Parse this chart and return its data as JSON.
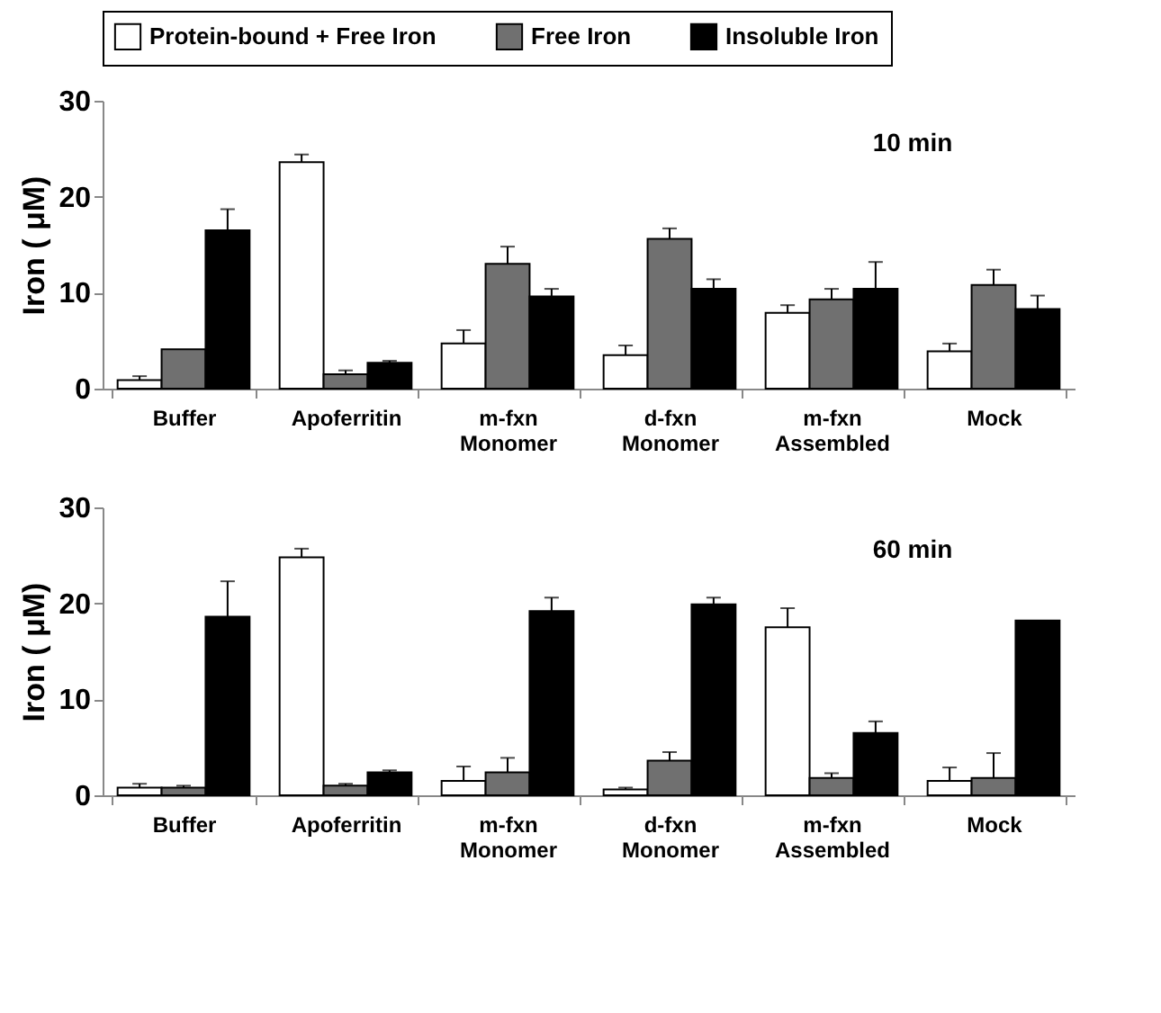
{
  "chart_data": [
    {
      "type": "bar",
      "ylabel": "Iron ( μM)",
      "categories": [
        "Buffer",
        "Apoferritin",
        "m-fxn Monomer",
        "d-fxn Monomer",
        "m-fxn Assembled",
        "Mock"
      ],
      "ylim": [
        0,
        30
      ],
      "yticks": [
        0,
        10,
        20,
        30
      ],
      "grid": false,
      "legend": "top",
      "annotations": [
        "10 min"
      ],
      "series": [
        {
          "name": "Protein-bound + Free Iron",
          "color": "#ffffff",
          "values": [
            0.9,
            23.6,
            4.7,
            3.5,
            7.9,
            3.9
          ],
          "errors": [
            [
              0.9,
              1.3
            ],
            [
              23.6,
              24.4
            ],
            [
              4.7,
              6.1
            ],
            [
              3.5,
              4.5
            ],
            [
              7.9,
              8.7
            ],
            [
              3.9,
              4.7
            ]
          ]
        },
        {
          "name": "Free Iron",
          "color": "#707070",
          "values": [
            4.1,
            1.5,
            13.0,
            15.6,
            9.3,
            10.8
          ],
          "errors": [
            null,
            [
              1.5,
              1.9
            ],
            [
              13.0,
              14.8
            ],
            [
              15.6,
              16.7
            ],
            [
              9.3,
              10.4
            ],
            [
              10.8,
              12.4
            ]
          ]
        },
        {
          "name": "Insoluble Iron",
          "color": "#000000",
          "values": [
            16.5,
            2.7,
            9.6,
            10.4,
            10.4,
            8.3
          ],
          "errors": [
            [
              16.5,
              18.7
            ],
            [
              2.7,
              2.9
            ],
            [
              9.6,
              10.4
            ],
            [
              10.4,
              11.4
            ],
            [
              10.4,
              13.2
            ],
            [
              8.3,
              9.7
            ]
          ]
        }
      ]
    },
    {
      "type": "bar",
      "ylabel": "Iron ( μM)",
      "categories": [
        "Buffer",
        "Apoferritin",
        "m-fxn Monomer",
        "d-fxn Monomer",
        "m-fxn Assembled",
        "Mock"
      ],
      "ylim": [
        0,
        30
      ],
      "yticks": [
        0,
        10,
        20,
        30
      ],
      "grid": false,
      "annotations": [
        "60 min"
      ],
      "series": [
        {
          "name": "Protein-bound + Free Iron",
          "color": "#ffffff",
          "values": [
            0.8,
            24.8,
            1.5,
            0.6,
            17.5,
            1.5
          ],
          "errors": [
            [
              0.8,
              1.2
            ],
            [
              24.8,
              25.7
            ],
            [
              1.5,
              3.0
            ],
            [
              0.6,
              0.8
            ],
            [
              17.5,
              19.5
            ],
            [
              1.5,
              2.9
            ]
          ]
        },
        {
          "name": "Free Iron",
          "color": "#707070",
          "values": [
            0.8,
            1.0,
            2.4,
            3.6,
            1.8,
            1.8
          ],
          "errors": [
            [
              0.8,
              1.0
            ],
            [
              1.0,
              1.2
            ],
            [
              2.4,
              3.9
            ],
            [
              3.6,
              4.5
            ],
            [
              1.8,
              2.3
            ],
            [
              1.8,
              4.4
            ]
          ]
        },
        {
          "name": "Insoluble Iron",
          "color": "#000000",
          "values": [
            18.6,
            2.4,
            19.2,
            19.9,
            6.5,
            18.2
          ],
          "errors": [
            [
              18.6,
              22.3
            ],
            [
              2.4,
              2.6
            ],
            [
              19.2,
              20.6
            ],
            [
              19.9,
              20.6
            ],
            [
              6.5,
              7.7
            ],
            null
          ]
        }
      ]
    }
  ]
}
